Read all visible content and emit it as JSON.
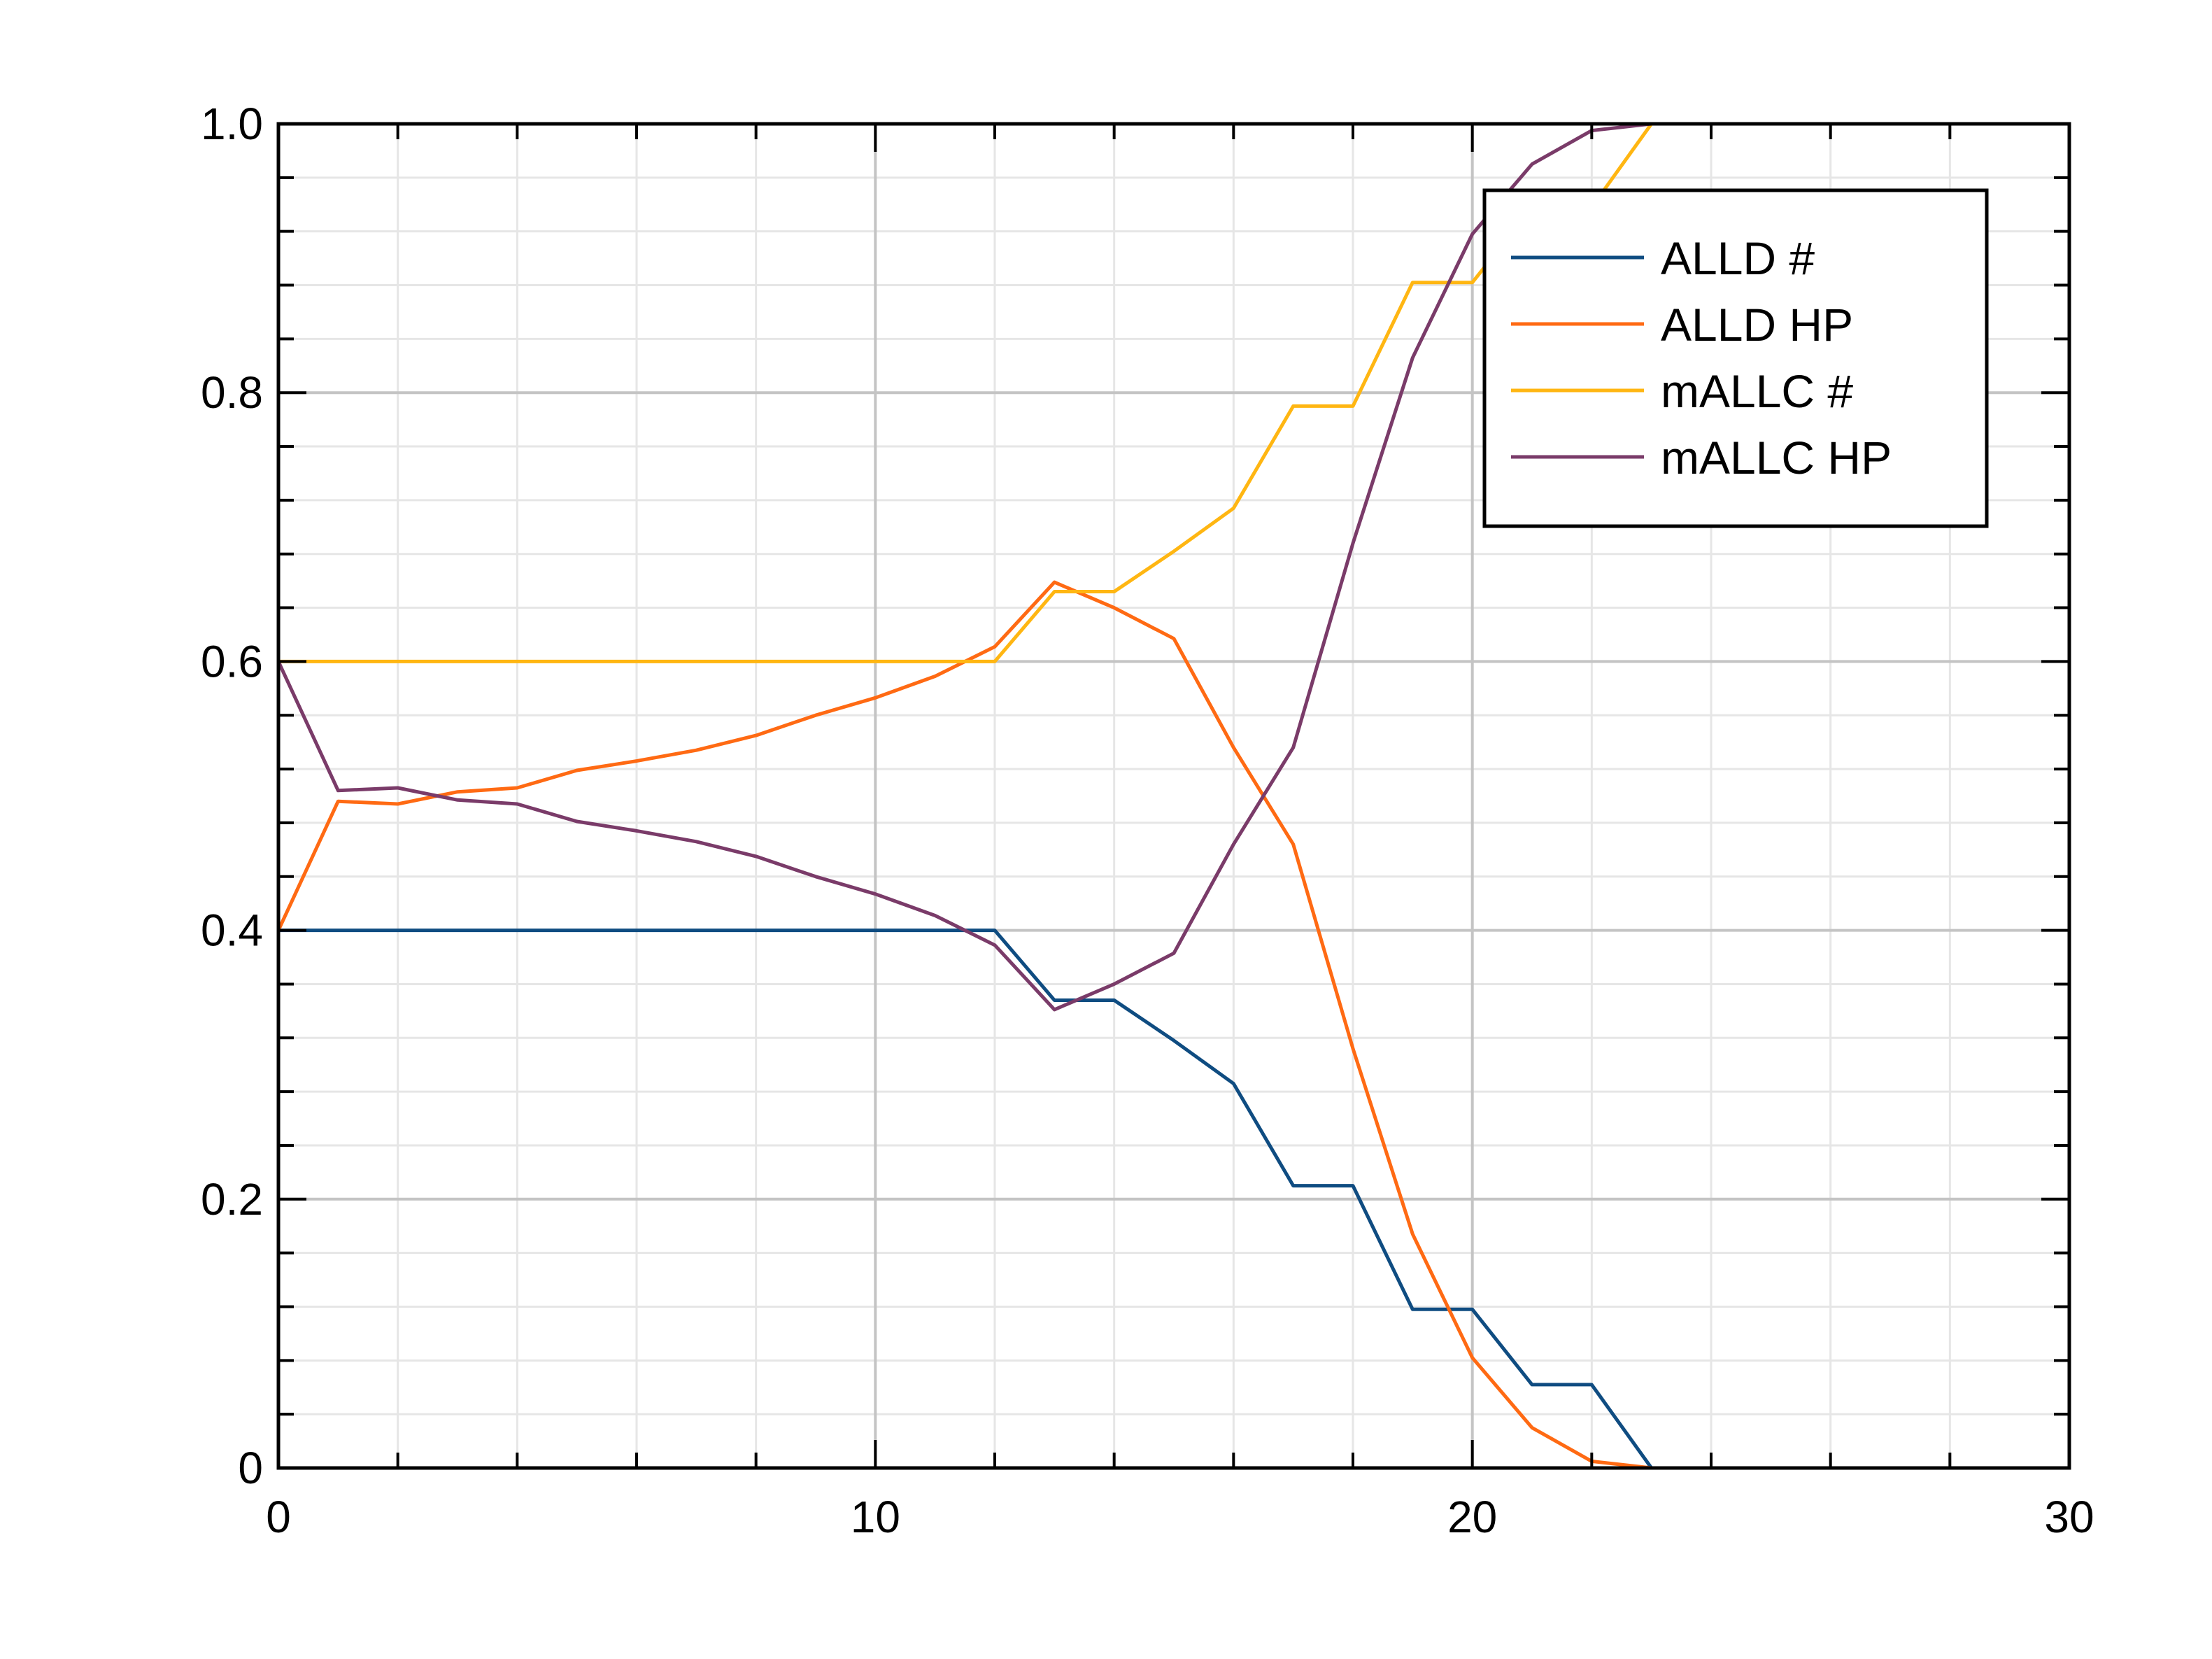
{
  "chart_data": {
    "type": "line",
    "title": "",
    "xlabel": "",
    "ylabel": "",
    "xlim": [
      0,
      30
    ],
    "ylim": [
      0,
      1
    ],
    "x_ticks": [
      0,
      10,
      20,
      30
    ],
    "x_tick_labels": [
      "0",
      "10",
      "20",
      "30"
    ],
    "y_ticks": [
      0,
      0.2,
      0.4,
      0.6,
      0.8,
      1.0
    ],
    "y_tick_labels": [
      "0",
      "0.2",
      "0.4",
      "0.6",
      "0.8",
      "1.0"
    ],
    "grid": true,
    "legend_position": "top-right",
    "x": [
      0,
      1,
      2,
      3,
      4,
      5,
      6,
      7,
      8,
      9,
      10,
      11,
      12,
      13,
      14,
      15,
      16,
      17,
      18,
      19,
      20,
      21,
      22,
      23,
      24,
      25,
      26,
      27,
      28,
      29,
      30
    ],
    "series": [
      {
        "name": "ALLD #",
        "color": "#0f4c81",
        "values": [
          0.4,
          0.4,
          0.4,
          0.4,
          0.4,
          0.4,
          0.4,
          0.4,
          0.4,
          0.4,
          0.4,
          0.4,
          0.4,
          0.348,
          0.348,
          0.318,
          0.286,
          0.21,
          0.21,
          0.118,
          0.118,
          0.062,
          0.062,
          0,
          0,
          0,
          0,
          0,
          0,
          0,
          0
        ]
      },
      {
        "name": "ALLD HP",
        "color": "#ff6a13",
        "values": [
          0.4,
          0.496,
          0.494,
          0.503,
          0.506,
          0.519,
          0.526,
          0.534,
          0.545,
          0.56,
          0.573,
          0.589,
          0.611,
          0.659,
          0.64,
          0.617,
          0.536,
          0.464,
          0.312,
          0.174,
          0.082,
          0.03,
          0.005,
          0,
          0,
          0,
          0,
          0,
          0,
          0,
          0
        ]
      },
      {
        "name": "mALLC #",
        "color": "#ffb612",
        "values": [
          0.6,
          0.6,
          0.6,
          0.6,
          0.6,
          0.6,
          0.6,
          0.6,
          0.6,
          0.6,
          0.6,
          0.6,
          0.6,
          0.652,
          0.652,
          0.682,
          0.714,
          0.79,
          0.79,
          0.882,
          0.882,
          0.938,
          0.938,
          1,
          1,
          1,
          1,
          1,
          1,
          1,
          1
        ]
      },
      {
        "name": "mALLC HP",
        "color": "#7a3b69",
        "values": [
          0.6,
          0.504,
          0.506,
          0.497,
          0.494,
          0.481,
          0.474,
          0.466,
          0.455,
          0.44,
          0.427,
          0.411,
          0.389,
          0.341,
          0.36,
          0.383,
          0.464,
          0.536,
          0.688,
          0.826,
          0.918,
          0.97,
          0.995,
          1,
          1,
          1,
          1,
          1,
          1,
          1,
          1
        ]
      }
    ]
  }
}
